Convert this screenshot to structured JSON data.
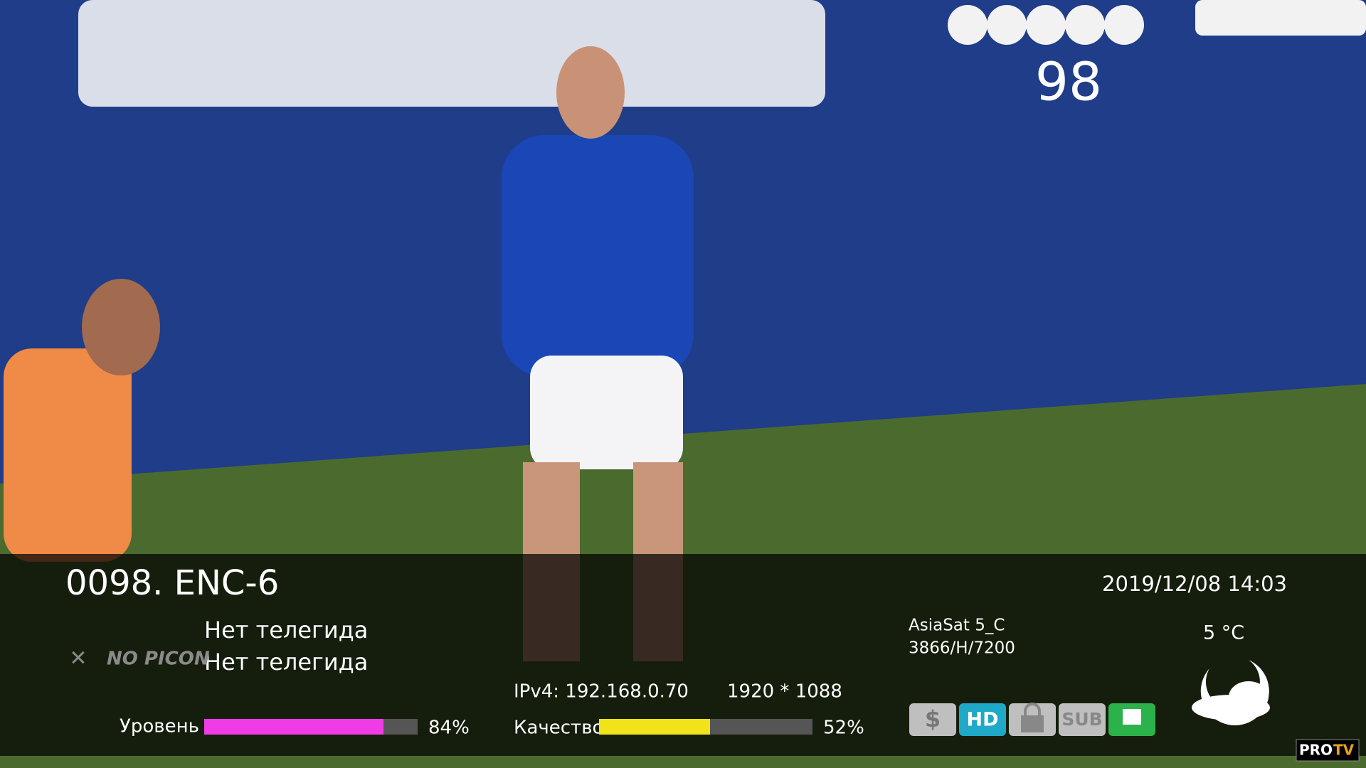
{
  "channel_badge": "98",
  "osd": {
    "channel": "0098. ENC-6",
    "datetime": "2019/12/08 14:03",
    "epg": [
      "Нет телегида",
      "Нет телегида"
    ],
    "picon": "NO PICON",
    "satellite": "AsiaSat 5_C",
    "transponder": "3866/H/7200",
    "temperature": "5 °C",
    "ip": "IPv4: 192.168.0.70",
    "resolution": "1920 * 1088",
    "level": {
      "label": "Уровень",
      "value": 84,
      "value_label": "84%",
      "color": "#f03ce6"
    },
    "quality": {
      "label": "Качество",
      "value": 52,
      "value_label": "52%",
      "color": "#f2e21a"
    },
    "icons": [
      "$",
      "HD",
      "SUB"
    ]
  },
  "watermark": {
    "pro": "PRO",
    "tv": "TV"
  }
}
